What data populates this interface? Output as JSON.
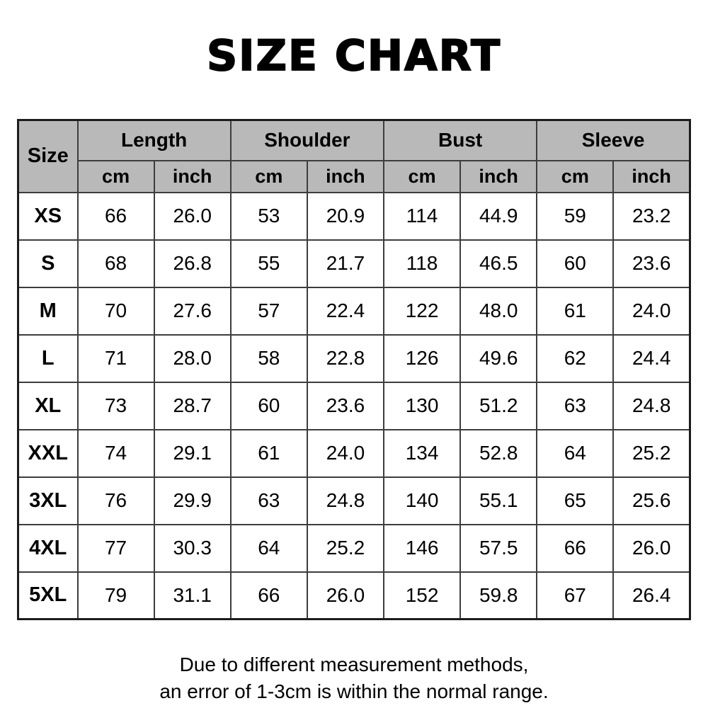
{
  "title": "SIZE CHART",
  "table": {
    "size_header": "Size",
    "group_headers": [
      "Length",
      "Shoulder",
      "Bust",
      "Sleeve"
    ],
    "unit_headers": [
      "cm",
      "inch"
    ],
    "rows": [
      {
        "size": "XS",
        "values": [
          "66",
          "26.0",
          "53",
          "20.9",
          "114",
          "44.9",
          "59",
          "23.2"
        ]
      },
      {
        "size": "S",
        "values": [
          "68",
          "26.8",
          "55",
          "21.7",
          "118",
          "46.5",
          "60",
          "23.6"
        ]
      },
      {
        "size": "M",
        "values": [
          "70",
          "27.6",
          "57",
          "22.4",
          "122",
          "48.0",
          "61",
          "24.0"
        ]
      },
      {
        "size": "L",
        "values": [
          "71",
          "28.0",
          "58",
          "22.8",
          "126",
          "49.6",
          "62",
          "24.4"
        ]
      },
      {
        "size": "XL",
        "values": [
          "73",
          "28.7",
          "60",
          "23.6",
          "130",
          "51.2",
          "63",
          "24.8"
        ]
      },
      {
        "size": "XXL",
        "values": [
          "74",
          "29.1",
          "61",
          "24.0",
          "134",
          "52.8",
          "64",
          "25.2"
        ]
      },
      {
        "size": "3XL",
        "values": [
          "76",
          "29.9",
          "63",
          "24.8",
          "140",
          "55.1",
          "65",
          "25.6"
        ]
      },
      {
        "size": "4XL",
        "values": [
          "77",
          "30.3",
          "64",
          "25.2",
          "146",
          "57.5",
          "66",
          "26.0"
        ]
      },
      {
        "size": "5XL",
        "values": [
          "79",
          "31.1",
          "66",
          "26.0",
          "152",
          "59.8",
          "67",
          "26.4"
        ]
      }
    ]
  },
  "footer": {
    "line1": "Due to different measurement methods,",
    "line2": "an error of 1-3cm is within the normal range."
  },
  "colors": {
    "header_bg": "#b9b9b9",
    "border": "#3d3d3d",
    "outer_border": "#1c1c1c",
    "text": "#000000",
    "background": "#ffffff"
  },
  "chart_data": {
    "type": "table",
    "title": "SIZE CHART",
    "columns": [
      "Size",
      "Length (cm)",
      "Length (inch)",
      "Shoulder (cm)",
      "Shoulder (inch)",
      "Bust (cm)",
      "Bust (inch)",
      "Sleeve (cm)",
      "Sleeve (inch)"
    ],
    "rows": [
      [
        "XS",
        66,
        26.0,
        53,
        20.9,
        114,
        44.9,
        59,
        23.2
      ],
      [
        "S",
        68,
        26.8,
        55,
        21.7,
        118,
        46.5,
        60,
        23.6
      ],
      [
        "M",
        70,
        27.6,
        57,
        22.4,
        122,
        48.0,
        61,
        24.0
      ],
      [
        "L",
        71,
        28.0,
        58,
        22.8,
        126,
        49.6,
        62,
        24.4
      ],
      [
        "XL",
        73,
        28.7,
        60,
        23.6,
        130,
        51.2,
        63,
        24.8
      ],
      [
        "XXL",
        74,
        29.1,
        61,
        24.0,
        134,
        52.8,
        64,
        25.2
      ],
      [
        "3XL",
        76,
        29.9,
        63,
        24.8,
        140,
        55.1,
        65,
        25.6
      ],
      [
        "4XL",
        77,
        30.3,
        64,
        25.2,
        146,
        57.5,
        66,
        26.0
      ],
      [
        "5XL",
        79,
        31.1,
        66,
        26.0,
        152,
        59.8,
        67,
        26.4
      ]
    ],
    "notes": "Due to different measurement methods, an error of 1-3cm is within the normal range."
  }
}
